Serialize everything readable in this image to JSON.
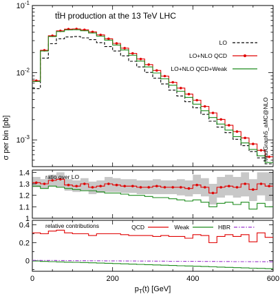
{
  "chart_data": [
    {
      "panel": "main",
      "type": "line",
      "title": "tt̄H production at the 13 TeV LHC",
      "xlabel": "p_T(t) [GeV]",
      "ylabel": "σ per bin [pb]",
      "yscale": "log",
      "ylim": [
        0.0004,
        0.1
      ],
      "xlim": [
        0,
        600
      ],
      "yticks": [
        "10^-3",
        "10^-2",
        "10^-1"
      ],
      "side_label": "MadGraph5_aMC@NLO",
      "legend_position": "top-right",
      "bin_edges": [
        0,
        20,
        40,
        60,
        80,
        100,
        120,
        140,
        160,
        180,
        200,
        220,
        240,
        260,
        280,
        300,
        320,
        340,
        360,
        380,
        400,
        420,
        440,
        460,
        480,
        500,
        520,
        540,
        560,
        580,
        600
      ],
      "series": [
        {
          "name": "LO",
          "color": "#000000",
          "style": "dashed",
          "values": [
            0.0058,
            0.0165,
            0.027,
            0.032,
            0.034,
            0.0345,
            0.033,
            0.031,
            0.028,
            0.0245,
            0.021,
            0.0178,
            0.0148,
            0.0122,
            0.0101,
            0.0083,
            0.0068,
            0.0055,
            0.0045,
            0.0037,
            0.003,
            0.0024,
            0.0019,
            0.00155,
            0.00128,
            0.00102,
            0.00082,
            0.00067,
            0.00054,
            0.00044
          ]
        },
        {
          "name": "LO+NLO QCD",
          "color": "#e00000",
          "style": "solid-markers",
          "values": [
            0.0076,
            0.0215,
            0.0355,
            0.042,
            0.0445,
            0.0448,
            0.0435,
            0.0405,
            0.0365,
            0.032,
            0.0273,
            0.0232,
            0.0194,
            0.016,
            0.0132,
            0.0108,
            0.0089,
            0.0072,
            0.0059,
            0.0048,
            0.0039,
            0.00315,
            0.00252,
            0.00202,
            0.00165,
            0.00133,
            0.00107,
            0.00087,
            0.0007,
            0.00056
          ]
        },
        {
          "name": "LO+NLO QCD+Weak",
          "color": "#1a8a1a",
          "style": "solid",
          "values": [
            0.0074,
            0.021,
            0.0345,
            0.041,
            0.0433,
            0.0436,
            0.0421,
            0.039,
            0.035,
            0.0305,
            0.0258,
            0.0218,
            0.0182,
            0.0149,
            0.0122,
            0.0099,
            0.0081,
            0.0065,
            0.0053,
            0.0043,
            0.0034,
            0.00272,
            0.00215,
            0.00172,
            0.0014,
            0.00112,
            0.0009,
            0.00072,
            0.00058,
            0.00046
          ]
        }
      ]
    },
    {
      "panel": "ratio",
      "type": "line",
      "annotation": "ratio over LO",
      "ylim": [
        1.0,
        1.42
      ],
      "yticks": [
        "1",
        "1.1",
        "1.2",
        "1.3",
        "1.4"
      ],
      "series": [
        {
          "name": "LO",
          "color": "#000000",
          "style": "dashed",
          "values": [
            1,
            1,
            1,
            1,
            1,
            1,
            1,
            1,
            1,
            1,
            1,
            1,
            1,
            1,
            1,
            1,
            1,
            1,
            1,
            1,
            1,
            1,
            1,
            1,
            1,
            1,
            1,
            1,
            1,
            1
          ]
        },
        {
          "name": "LO+NLO QCD",
          "color": "#e00000",
          "style": "solid-markers",
          "values": [
            1.31,
            1.3,
            1.33,
            1.34,
            1.29,
            1.28,
            1.3,
            1.27,
            1.28,
            1.3,
            1.29,
            1.28,
            1.28,
            1.27,
            1.27,
            1.28,
            1.27,
            1.27,
            1.27,
            1.26,
            1.29,
            1.27,
            1.22,
            1.27,
            1.28,
            1.27,
            1.3,
            1.25,
            1.3,
            1.28
          ]
        },
        {
          "name": "LO+NLO QCD+Weak",
          "color": "#1a8a1a",
          "style": "solid",
          "values": [
            1.28,
            1.26,
            1.28,
            1.27,
            1.26,
            1.25,
            1.24,
            1.24,
            1.23,
            1.22,
            1.22,
            1.21,
            1.2,
            1.2,
            1.19,
            1.18,
            1.18,
            1.17,
            1.16,
            1.15,
            1.16,
            1.14,
            1.1,
            1.13,
            1.14,
            1.12,
            1.14,
            1.08,
            1.13,
            1.1
          ]
        }
      ],
      "band": {
        "color": "#c8c8c8",
        "low": [
          1.27,
          1.26,
          1.28,
          1.27,
          1.24,
          1.23,
          1.24,
          1.21,
          1.22,
          1.23,
          1.23,
          1.22,
          1.22,
          1.21,
          1.21,
          1.21,
          1.21,
          1.21,
          1.2,
          1.19,
          1.21,
          1.19,
          1.12,
          1.18,
          1.2,
          1.18,
          1.19,
          1.15,
          1.2,
          1.15
        ],
        "high": [
          1.36,
          1.34,
          1.38,
          1.4,
          1.34,
          1.33,
          1.35,
          1.32,
          1.33,
          1.36,
          1.35,
          1.34,
          1.34,
          1.33,
          1.33,
          1.34,
          1.33,
          1.33,
          1.34,
          1.33,
          1.38,
          1.35,
          1.3,
          1.36,
          1.38,
          1.36,
          1.4,
          1.34,
          1.4,
          1.4
        ]
      }
    },
    {
      "panel": "contributions",
      "type": "line",
      "annotation": "relative contributions",
      "xlabel": "p_T(t) [GeV]",
      "ylim": [
        -0.12,
        0.45
      ],
      "yticks": [
        "0",
        "0.2",
        "0.4"
      ],
      "xticks": [
        "0",
        "200",
        "400",
        "600"
      ],
      "series": [
        {
          "name": "QCD",
          "color": "#e00000",
          "style": "solid",
          "values": [
            0.31,
            0.3,
            0.33,
            0.34,
            0.31,
            0.3,
            0.3,
            0.28,
            0.3,
            0.3,
            0.3,
            0.29,
            0.28,
            0.28,
            0.28,
            0.27,
            0.28,
            0.27,
            0.27,
            0.25,
            0.29,
            0.28,
            0.2,
            0.27,
            0.29,
            0.27,
            0.29,
            0.21,
            0.31,
            0.26
          ]
        },
        {
          "name": "Weak",
          "color": "#1a8a1a",
          "style": "solid",
          "values": [
            -0.005,
            -0.01,
            -0.012,
            -0.015,
            -0.018,
            -0.02,
            -0.022,
            -0.025,
            -0.028,
            -0.031,
            -0.034,
            -0.037,
            -0.04,
            -0.043,
            -0.046,
            -0.049,
            -0.052,
            -0.055,
            -0.058,
            -0.061,
            -0.064,
            -0.067,
            -0.07,
            -0.073,
            -0.076,
            -0.079,
            -0.082,
            -0.085,
            -0.088,
            -0.091
          ]
        },
        {
          "name": "HBR",
          "color": "#9933cc",
          "style": "dash-dot",
          "values": [
            0.002,
            0.001,
            0.001,
            0.0,
            -0.001,
            -0.002,
            -0.002,
            -0.003,
            -0.003,
            -0.004,
            -0.004,
            -0.005,
            -0.005,
            -0.006,
            -0.006,
            -0.007,
            -0.007,
            -0.008,
            -0.008,
            -0.009,
            -0.009,
            -0.01,
            -0.01,
            -0.011,
            -0.011,
            -0.012,
            -0.012,
            -0.013,
            -0.013,
            -0.014
          ]
        }
      ]
    }
  ]
}
